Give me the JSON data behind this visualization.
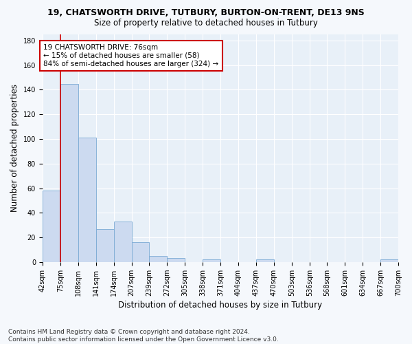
{
  "title": "19, CHATSWORTH DRIVE, TUTBURY, BURTON-ON-TRENT, DE13 9NS",
  "subtitle": "Size of property relative to detached houses in Tutbury",
  "xlabel": "Distribution of detached houses by size in Tutbury",
  "ylabel": "Number of detached properties",
  "bar_color": "#ccdaf0",
  "bar_edge_color": "#7aaad4",
  "bins_left": [
    42,
    75,
    108,
    141,
    174,
    207,
    239,
    272,
    305,
    338,
    371,
    404,
    437,
    470,
    503,
    536,
    568,
    601,
    634,
    667
  ],
  "bins_right": [
    75,
    108,
    141,
    174,
    207,
    239,
    272,
    305,
    338,
    371,
    404,
    437,
    470,
    503,
    536,
    568,
    601,
    634,
    667,
    700
  ],
  "counts": [
    58,
    145,
    101,
    27,
    33,
    16,
    5,
    3,
    0,
    2,
    0,
    0,
    2,
    0,
    0,
    0,
    0,
    0,
    0,
    2
  ],
  "tick_positions": [
    42,
    75,
    108,
    141,
    174,
    207,
    239,
    272,
    305,
    338,
    371,
    404,
    437,
    470,
    503,
    536,
    568,
    601,
    634,
    667,
    700
  ],
  "tick_labels": [
    "42sqm",
    "75sqm",
    "108sqm",
    "141sqm",
    "174sqm",
    "207sqm",
    "239sqm",
    "272sqm",
    "305sqm",
    "338sqm",
    "371sqm",
    "404sqm",
    "437sqm",
    "470sqm",
    "503sqm",
    "536sqm",
    "568sqm",
    "601sqm",
    "634sqm",
    "667sqm",
    "700sqm"
  ],
  "vline_x": 75,
  "vline_color": "#cc0000",
  "annotation_text": "19 CHATSWORTH DRIVE: 76sqm\n← 15% of detached houses are smaller (58)\n84% of semi-detached houses are larger (324) →",
  "annotation_box_color": "#ffffff",
  "annotation_box_edge": "#cc0000",
  "footer": "Contains HM Land Registry data © Crown copyright and database right 2024.\nContains public sector information licensed under the Open Government Licence v3.0.",
  "ylim": [
    0,
    185
  ],
  "yticks": [
    0,
    20,
    40,
    60,
    80,
    100,
    120,
    140,
    160,
    180
  ],
  "plot_bg_color": "#e8f0f8",
  "fig_bg_color": "#f5f8fc",
  "grid_color": "#ffffff",
  "title_fontsize": 9,
  "subtitle_fontsize": 8.5,
  "axis_label_fontsize": 8.5,
  "tick_fontsize": 7,
  "annotation_fontsize": 7.5,
  "footer_fontsize": 6.5
}
